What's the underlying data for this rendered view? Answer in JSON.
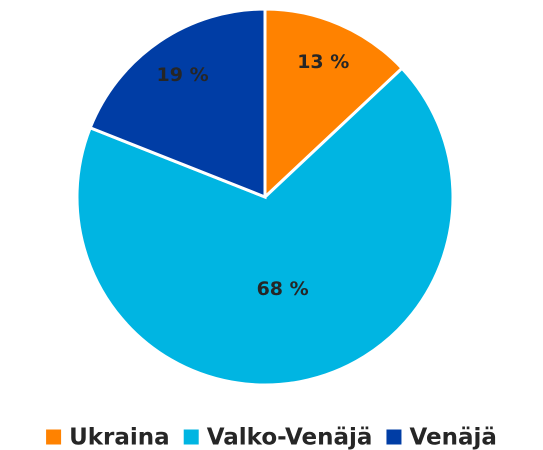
{
  "chart_data": {
    "type": "pie",
    "categories": [
      "Ukraina",
      "Valko-Venäjä",
      "Venäjä"
    ],
    "values": [
      13,
      68,
      19
    ],
    "value_labels": [
      "13 %",
      "68 %",
      "19 %"
    ],
    "colors": [
      "#ff8200",
      "#00b5e2",
      "#003da5"
    ],
    "legend": "bottom"
  }
}
